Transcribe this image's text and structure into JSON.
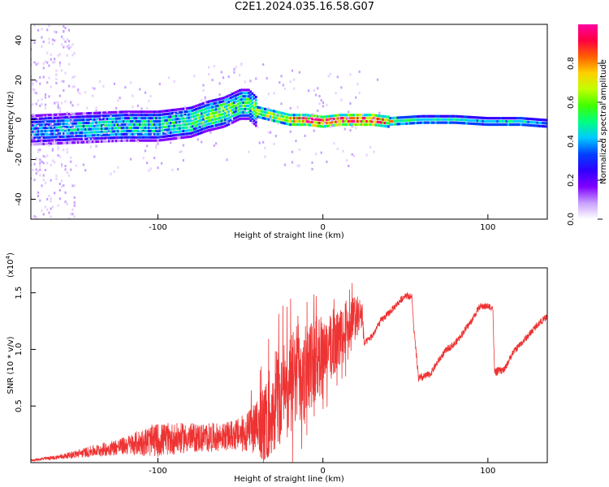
{
  "title": "C2E1.2024.035.16.58.G07",
  "chart_data": [
    {
      "type": "heatmap",
      "xlabel": "Height of straight line (km)",
      "ylabel": "Frequency (Hz)",
      "xlim": [
        -177,
        136
      ],
      "ylim": [
        -50,
        48
      ],
      "x_ticks": [
        "-100",
        "0",
        "100"
      ],
      "y_ticks": [
        "40",
        "20",
        "0",
        "-20",
        "-40"
      ],
      "colorbar": {
        "label": "Normalized spectral amplitude",
        "range": [
          0.0,
          1.0
        ],
        "ticks": [
          "0.0",
          "0.2",
          "0.4",
          "0.6",
          "0.8"
        ],
        "colors": [
          "#ffffff",
          "#c8a0ff",
          "#8000ff",
          "#3000ff",
          "#0040ff",
          "#00c8ff",
          "#00ff80",
          "#40ff00",
          "#c0ff00",
          "#ffd000",
          "#ff6000",
          "#ff0040",
          "#ff00a0"
        ]
      },
      "ridge": {
        "x": [
          -177,
          -150,
          -120,
          -100,
          -80,
          -70,
          -60,
          -50,
          -45,
          -40,
          -35,
          -30,
          -20,
          -10,
          0,
          10,
          20,
          30,
          40,
          60,
          80,
          100,
          120,
          136
        ],
        "frequency": [
          -5,
          -4,
          -3,
          -3,
          -1,
          2,
          4,
          8,
          8,
          4,
          3,
          2,
          0,
          0,
          -1,
          0,
          0,
          0,
          -1,
          0,
          0,
          -1,
          -1,
          -2
        ],
        "amplitude": [
          0.35,
          0.4,
          0.45,
          0.45,
          0.5,
          0.55,
          0.55,
          0.5,
          0.5,
          0.55,
          0.6,
          0.62,
          0.7,
          0.85,
          0.9,
          0.88,
          0.9,
          0.92,
          0.7,
          0.55,
          0.55,
          0.5,
          0.55,
          0.45
        ]
      }
    },
    {
      "type": "line",
      "xlabel": "Height of straight line (km)",
      "ylabel": "SNR (10 * v/v)",
      "y_multiplier": "(x10",
      "y_multiplier_exp": "4",
      "xlim": [
        -177,
        136
      ],
      "ylim": [
        0.0,
        1.72
      ],
      "x_ticks": [
        "-100",
        "0",
        "100"
      ],
      "y_ticks": [
        "1.5",
        "1.0",
        "0.5"
      ],
      "color": "#ee3333",
      "series": [
        {
          "x": [
            -177,
            -160,
            -140,
            -120,
            -110,
            -100,
            -90,
            -80,
            -70,
            -60,
            -50,
            -40,
            -35,
            -30,
            -25,
            -20,
            -15,
            -10,
            -5,
            0,
            5,
            10,
            15,
            20,
            24,
            25,
            30,
            35,
            40,
            45,
            50,
            54,
            55,
            58,
            65,
            70,
            75,
            80,
            85,
            90,
            95,
            100,
            103,
            104,
            110,
            115,
            120,
            125,
            130,
            136
          ],
          "y": [
            0.02,
            0.05,
            0.1,
            0.15,
            0.18,
            0.2,
            0.21,
            0.22,
            0.22,
            0.23,
            0.25,
            0.3,
            0.35,
            0.55,
            0.6,
            0.7,
            0.78,
            0.85,
            0.9,
            1.0,
            1.02,
            1.1,
            1.15,
            1.3,
            1.3,
            1.05,
            1.12,
            1.25,
            1.32,
            1.4,
            1.48,
            1.46,
            1.2,
            0.74,
            0.78,
            0.9,
            1.0,
            1.05,
            1.15,
            1.25,
            1.38,
            1.38,
            1.37,
            0.8,
            0.82,
            0.97,
            1.05,
            1.13,
            1.22,
            1.29
          ],
          "noise": [
            0.01,
            0.02,
            0.05,
            0.08,
            0.12,
            0.15,
            0.14,
            0.13,
            0.13,
            0.12,
            0.15,
            0.25,
            0.35,
            0.45,
            0.45,
            0.45,
            0.45,
            0.45,
            0.4,
            0.3,
            0.3,
            0.25,
            0.25,
            0.2,
            0.15,
            0.03,
            0.03,
            0.03,
            0.03,
            0.03,
            0.03,
            0.03,
            0.03,
            0.04,
            0.03,
            0.03,
            0.03,
            0.03,
            0.03,
            0.03,
            0.03,
            0.03,
            0.03,
            0.04,
            0.03,
            0.03,
            0.03,
            0.03,
            0.03,
            0.03
          ]
        }
      ]
    }
  ]
}
